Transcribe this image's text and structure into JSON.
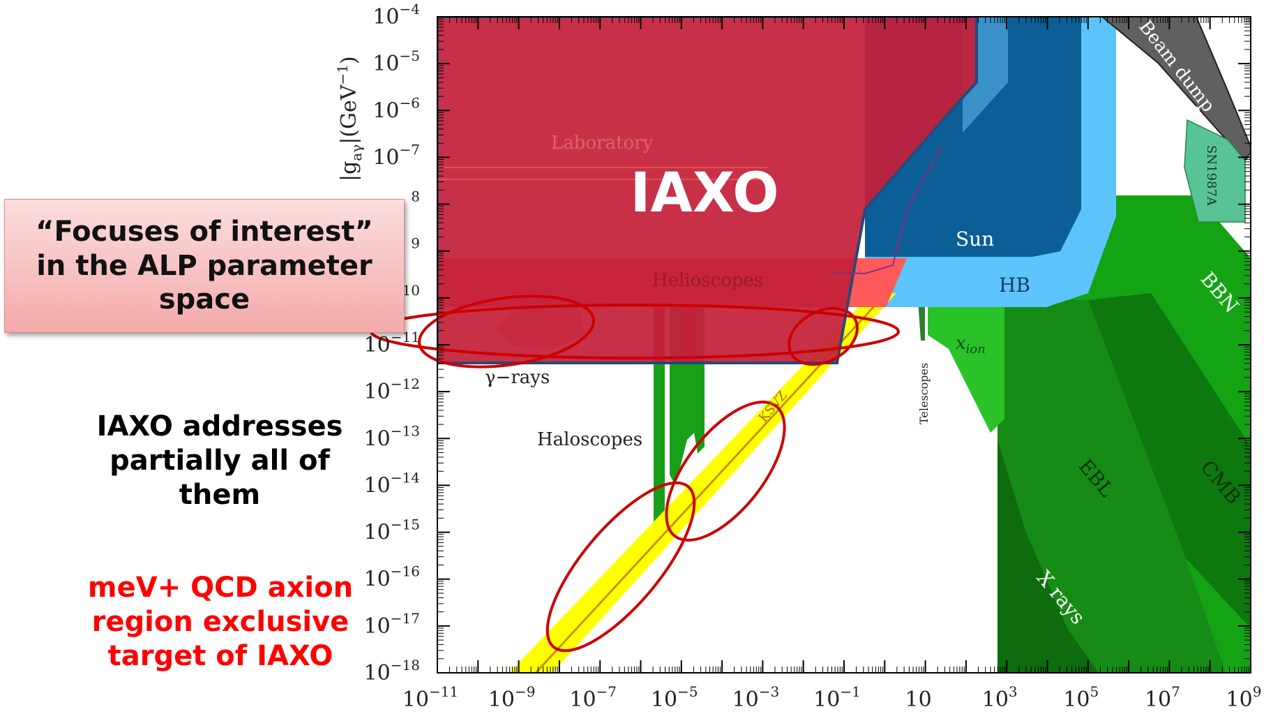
{
  "chart_data": {
    "type": "exclusion-plot",
    "ylabel": "|g_{aγ}|(GeV^{-1})",
    "x_scale": "log",
    "y_scale": "log",
    "xlim_exponent": [
      -11,
      9
    ],
    "ylim_exponent": [
      -18,
      -4
    ],
    "x_ticks": [
      {
        "exp": -11,
        "base": "10",
        "sup": "−11"
      },
      {
        "exp": -9,
        "base": "10",
        "sup": "−9"
      },
      {
        "exp": -7,
        "base": "10",
        "sup": "−7"
      },
      {
        "exp": -5,
        "base": "10",
        "sup": "−5"
      },
      {
        "exp": -3,
        "base": "10",
        "sup": "−3"
      },
      {
        "exp": -1,
        "base": "10",
        "sup": "−1"
      },
      {
        "exp": 1,
        "base": "10",
        "sup": ""
      },
      {
        "exp": 3,
        "base": "10",
        "sup": "3"
      },
      {
        "exp": 5,
        "base": "10",
        "sup": "5"
      },
      {
        "exp": 7,
        "base": "10",
        "sup": "7"
      },
      {
        "exp": 9,
        "base": "10",
        "sup": "9"
      }
    ],
    "y_ticks": [
      {
        "exp": -4,
        "base": "10",
        "sup": "−4"
      },
      {
        "exp": -5,
        "base": "10",
        "sup": "−5"
      },
      {
        "exp": -6,
        "base": "10",
        "sup": "−6"
      },
      {
        "exp": -7,
        "base": "10",
        "sup": "−7"
      },
      {
        "exp": -8,
        "base": "",
        "sup": "8"
      },
      {
        "exp": -9,
        "base": "",
        "sup": "9"
      },
      {
        "exp": -10,
        "base": "",
        "sup": "10"
      },
      {
        "exp": -11,
        "base": "10",
        "sup": "−11"
      },
      {
        "exp": -12,
        "base": "10",
        "sup": "−12"
      },
      {
        "exp": -13,
        "base": "10",
        "sup": "−13"
      },
      {
        "exp": -14,
        "base": "10",
        "sup": "−14"
      },
      {
        "exp": -15,
        "base": "10",
        "sup": "−15"
      },
      {
        "exp": -16,
        "base": "10",
        "sup": "−16"
      },
      {
        "exp": -17,
        "base": "10",
        "sup": "−17"
      },
      {
        "exp": -18,
        "base": "10",
        "sup": "−18"
      }
    ],
    "regions": [
      {
        "label": "Laboratory",
        "color": "#e8524a"
      },
      {
        "label": "Helioscopes",
        "color": "#d03a3a"
      },
      {
        "label": "Haloscopes",
        "color": "#18a018"
      },
      {
        "label": "γ−rays",
        "color": "#e85a50"
      },
      {
        "label": "Telescopes",
        "color": "#2c7e2c"
      },
      {
        "label": "Sun",
        "color": "#0b5e96"
      },
      {
        "label": "HB",
        "color": "#5cc4fa"
      },
      {
        "label": "x_ion",
        "color": "#29c229"
      },
      {
        "label": "Beam dump",
        "color": "#606060"
      },
      {
        "label": "SN1987A",
        "color": "#58c495"
      },
      {
        "label": "BBN",
        "color": "#13a313"
      },
      {
        "label": "CMB",
        "color": "#0d780d"
      },
      {
        "label": "EBL",
        "color": "#168c16"
      },
      {
        "label": "X rays",
        "color": "#0e6b0e"
      },
      {
        "label": "KSVZ",
        "color": "#ffff00"
      },
      {
        "label": "IAXO",
        "color": "#c4203a"
      }
    ]
  },
  "overlay": {
    "iaxo_label": "IAXO",
    "callout_lines": [
      "“Focuses of interest”",
      "in the ALP parameter",
      "space"
    ],
    "note_black_lines": [
      "IAXO addresses",
      "partially all of",
      "them"
    ],
    "note_red_lines": [
      "meV+ QCD axion",
      "region exclusive",
      "target of IAXO"
    ]
  },
  "labels": {
    "laboratory": "Laboratory",
    "helioscopes": "Helioscopes",
    "haloscopes": "Haloscopes",
    "gamma_rays": "γ−rays",
    "telescopes": "Telescopes",
    "sun": "Sun",
    "hb": "HB",
    "x_ion_base": "x",
    "x_ion_sub": "ion",
    "beam_dump": "Beam dump",
    "sn1987a": "SN1987A",
    "bbn": "BBN",
    "cmb": "CMB",
    "ebl": "EBL",
    "x_rays": "X rays",
    "ksvz": "KSVZ"
  },
  "axis": {
    "y_label_parts": {
      "abs_open": "|g",
      "sub": "aγ",
      "rest": "|(GeV",
      "sup": "−1",
      "close": ")"
    }
  }
}
